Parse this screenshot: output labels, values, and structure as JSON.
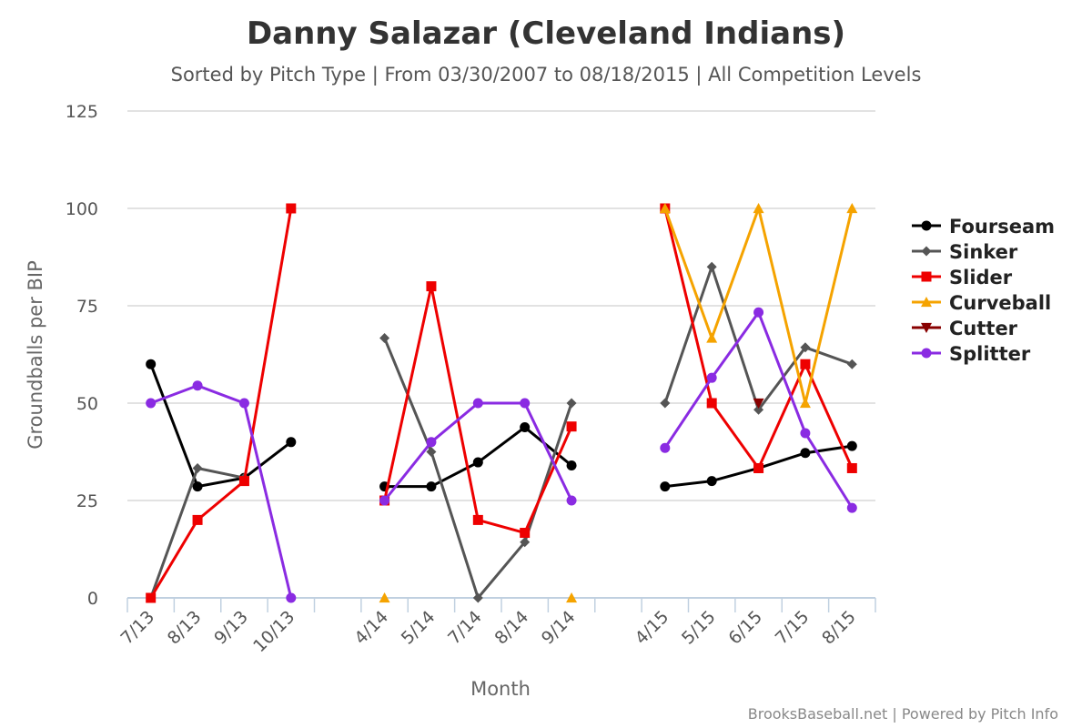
{
  "chart_data": {
    "type": "line",
    "title": "Danny Salazar (Cleveland Indians)",
    "subtitle": "Sorted by Pitch Type | From 03/30/2007 to 08/18/2015 | All Competition Levels",
    "xlabel": "Month",
    "ylabel": "Groundballs per BIP",
    "ylim": [
      0,
      125
    ],
    "yticks": [
      0,
      25,
      50,
      75,
      100,
      125
    ],
    "grid": true,
    "legend": "right",
    "categories": [
      "7/13",
      "8/13",
      "9/13",
      "10/13",
      "",
      "4/14",
      "5/14",
      "7/14",
      "8/14",
      "9/14",
      "",
      "4/15",
      "5/15",
      "6/15",
      "7/15",
      "8/15"
    ],
    "series": [
      {
        "name": "Fourseam",
        "color": "#000000",
        "marker": "circle",
        "values": [
          60,
          28.6,
          30.8,
          40,
          null,
          28.6,
          28.6,
          34.8,
          43.8,
          34,
          null,
          28.6,
          30,
          33.3,
          37.2,
          39
        ]
      },
      {
        "name": "Sinker",
        "color": "#555555",
        "marker": "diamond",
        "values": [
          0,
          33.3,
          30.8,
          null,
          null,
          66.7,
          37.5,
          0,
          14.3,
          50,
          null,
          50,
          85,
          48.3,
          64.3,
          60
        ]
      },
      {
        "name": "Slider",
        "color": "#ee0000",
        "marker": "square",
        "values": [
          0,
          20,
          30,
          100,
          null,
          25,
          80,
          20,
          16.7,
          44,
          null,
          100,
          50,
          33.3,
          60,
          33.3
        ]
      },
      {
        "name": "Curveball",
        "color": "#f5a300",
        "marker": "triangle",
        "values": [
          null,
          null,
          null,
          null,
          null,
          0,
          null,
          null,
          null,
          0,
          null,
          100,
          66.7,
          100,
          50,
          100
        ]
      },
      {
        "name": "Cutter",
        "color": "#880000",
        "marker": "triangle-down",
        "values": [
          null,
          null,
          null,
          null,
          null,
          null,
          null,
          null,
          null,
          null,
          null,
          null,
          null,
          50,
          null,
          null
        ]
      },
      {
        "name": "Splitter",
        "color": "#8a2be2",
        "marker": "circle",
        "values": [
          50,
          54.5,
          50,
          0,
          null,
          25,
          40,
          50,
          50,
          25,
          null,
          38.5,
          56.5,
          73.3,
          42.3,
          23.1
        ]
      }
    ]
  },
  "credits": "BrooksBaseball.net | Powered by Pitch Info"
}
